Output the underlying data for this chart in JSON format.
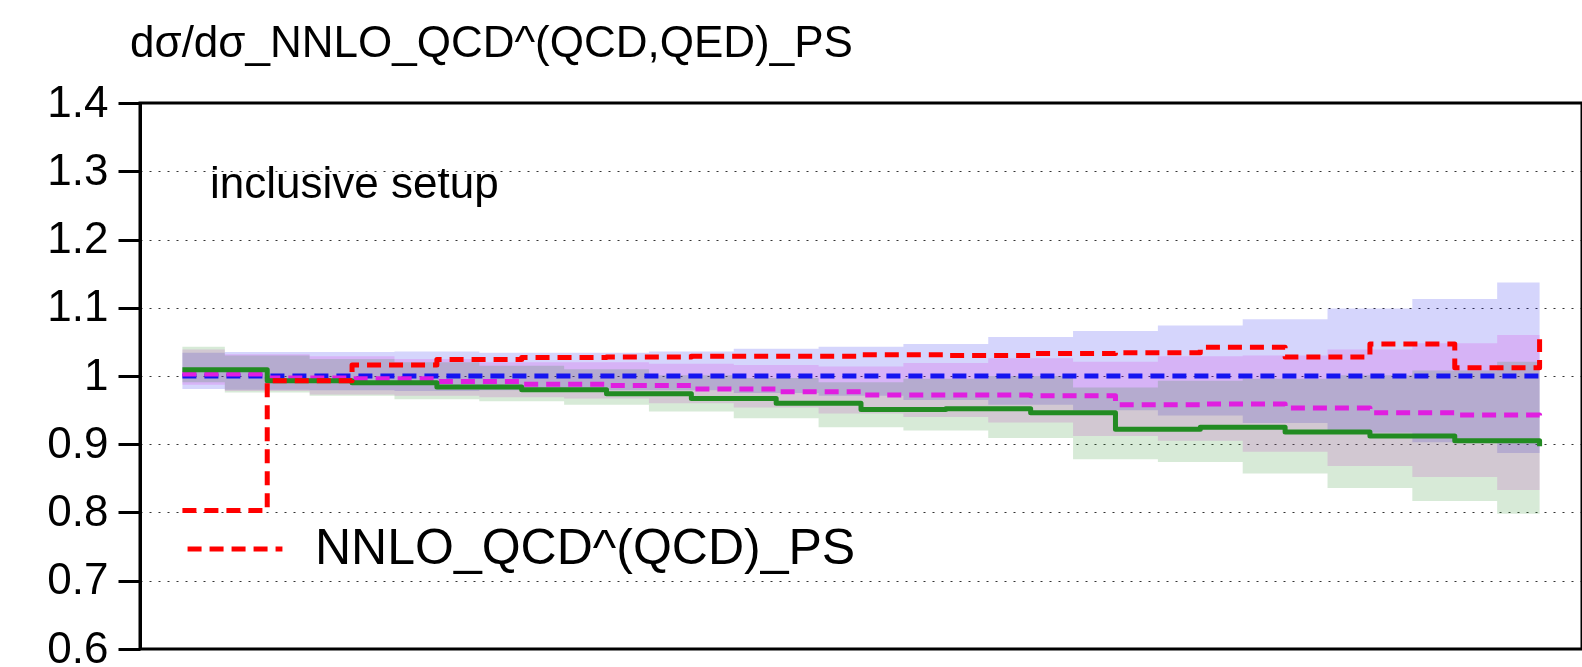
{
  "chart_data": {
    "type": "step",
    "ylabel": "dσ/dσ_NNLO_QCD^(QCD,QED)_PS",
    "annotations": [
      "inclusive setup"
    ],
    "categories": [
      null,
      null,
      null,
      null,
      null,
      null,
      null,
      null,
      null,
      null,
      null,
      null,
      null,
      null,
      null,
      null,
      null
    ],
    "ylim": [
      0.6,
      1.4
    ],
    "yticks": [
      0.6,
      0.7,
      0.8,
      0.9,
      1,
      1.1,
      1.2,
      1.3,
      1.4
    ],
    "grid": "y",
    "legend": "bottom left",
    "tick_labels": "y",
    "series": [
      {
        "color": "#1414f0",
        "line_style": "dashed",
        "values": [
          1,
          1,
          1,
          1,
          1,
          1,
          1,
          1,
          1,
          1,
          1,
          1,
          1,
          1,
          1,
          1,
          1
        ],
        "lower": [
          0.981,
          0.98,
          0.979,
          0.978,
          0.979,
          0.979,
          0.979,
          0.975,
          0.971,
          0.965,
          0.958,
          0.95,
          0.942,
          0.931,
          0.917,
          0.903,
          0.887
        ],
        "upper": [
          1.034,
          1.035,
          1.035,
          1.036,
          1.034,
          1.034,
          1.036,
          1.04,
          1.043,
          1.047,
          1.057,
          1.066,
          1.074,
          1.083,
          1.099,
          1.113,
          1.137
        ]
      },
      {
        "color": "#e01ee0",
        "line_style": "dashed",
        "values": [
          1.003,
          0.997,
          0.996,
          0.992,
          0.988,
          0.986,
          0.981,
          0.977,
          0.972,
          0.972,
          0.971,
          0.958,
          0.959,
          0.953,
          0.946,
          0.943,
          0.935
        ],
        "lower": [
          0.987,
          0.978,
          0.973,
          0.971,
          0.969,
          0.967,
          0.96,
          0.954,
          0.945,
          0.94,
          0.932,
          0.912,
          0.905,
          0.889,
          0.868,
          0.852,
          0.833
        ],
        "upper": [
          1.039,
          1.032,
          1.029,
          1.025,
          1.02,
          1.02,
          1.018,
          1.016,
          1.014,
          1.019,
          1.026,
          1.021,
          1.029,
          1.03,
          1.039,
          1.048,
          1.06
        ]
      },
      {
        "color": "#228b22",
        "line_style": "solid",
        "values": [
          1.009,
          0.993,
          0.99,
          0.984,
          0.98,
          0.974,
          0.967,
          0.96,
          0.951,
          0.952,
          0.946,
          0.922,
          0.925,
          0.918,
          0.912,
          0.905,
          0.897
        ],
        "lower": [
          0.991,
          0.976,
          0.971,
          0.966,
          0.963,
          0.958,
          0.948,
          0.938,
          0.925,
          0.92,
          0.909,
          0.878,
          0.874,
          0.857,
          0.836,
          0.817,
          0.798
        ],
        "upper": [
          1.043,
          1.03,
          1.025,
          1.02,
          1.015,
          1.01,
          1.001,
          0.997,
          0.991,
          0.996,
          1,
          0.983,
          0.993,
          0.996,
          1.001,
          1.008,
          1.021
        ]
      },
      {
        "name": "NNLO_QCD^(QCD)_PS",
        "color": "#ff0000",
        "line_style": "dashed",
        "values": [
          0.803,
          0.993,
          1.016,
          1.024,
          1.027,
          1.028,
          1.029,
          1.029,
          1.031,
          1.03,
          1.033,
          1.034,
          1.042,
          1.028,
          1.047,
          1.012,
          1.054
        ]
      }
    ]
  }
}
